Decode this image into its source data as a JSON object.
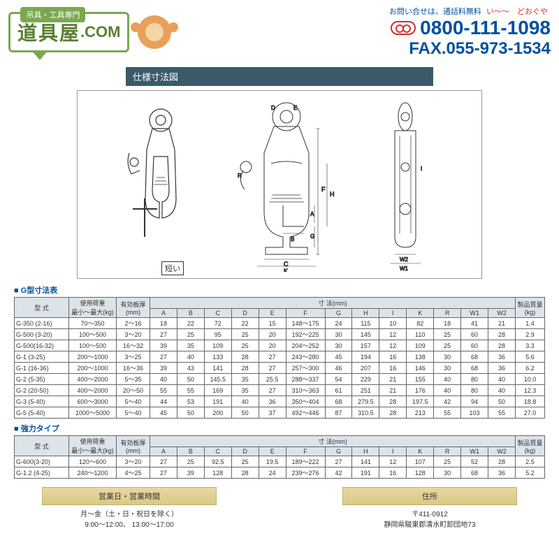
{
  "header": {
    "logo_main": "道具屋",
    "logo_com": ".COM",
    "logo_tag": "吊具・工具専門",
    "contact_label": "お問い合せは、通話料無料",
    "kana_i": "い〜〜",
    "kana_do": "どおぐや",
    "phone": "0800-111-1098",
    "fax": "FAX.055-973-1534"
  },
  "section_title": "仕様寸法図",
  "diagram_note": "短い",
  "table1": {
    "heading": "■ G型寸法表",
    "cols_top": [
      "型 式",
      "使用荷重\n最小〜最大(kg)",
      "有効板厚\n(mm)",
      "寸 法(mm)",
      "製品質量\n(kg)"
    ],
    "dim_cols": [
      "A",
      "B",
      "C",
      "D",
      "E",
      "F",
      "G",
      "H",
      "I",
      "K",
      "R",
      "W1",
      "W2"
    ],
    "rows": [
      [
        "G-350  (2-16)",
        "70〜350",
        "2〜16",
        "18",
        "22",
        "72",
        "22",
        "15",
        "148〜175",
        "24",
        "115",
        "10",
        "82",
        "18",
        "41",
        "21",
        "1.4"
      ],
      [
        "G-500  (3-20)",
        "100〜500",
        "3〜20",
        "27",
        "25",
        "95",
        "25",
        "20",
        "192〜225",
        "30",
        "145",
        "12",
        "110",
        "25",
        "60",
        "28",
        "2.9"
      ],
      [
        "G-500(16-32)",
        "100〜500",
        "16〜32",
        "39",
        "35",
        "109",
        "25",
        "20",
        "204〜252",
        "30",
        "157",
        "12",
        "109",
        "25",
        "60",
        "28",
        "3.3"
      ],
      [
        "G-1    (3-25)",
        "200〜1000",
        "3〜25",
        "27",
        "40",
        "133",
        "28",
        "27",
        "243〜280",
        "45",
        "194",
        "16",
        "138",
        "30",
        "68",
        "36",
        "5.6"
      ],
      [
        "G-1   (16-36)",
        "200〜1000",
        "16〜36",
        "39",
        "43",
        "141",
        "28",
        "27",
        "257〜300",
        "46",
        "207",
        "16",
        "146",
        "30",
        "68",
        "36",
        "6.2"
      ],
      [
        "G-2    (5-35)",
        "400〜2000",
        "5〜35",
        "40",
        "50",
        "145.5",
        "35",
        "25.5",
        "288〜337",
        "54",
        "229",
        "21",
        "155",
        "40",
        "80",
        "40",
        "10.0"
      ],
      [
        "G-2   (20-50)",
        "400〜2000",
        "20〜50",
        "55",
        "55",
        "169",
        "35",
        "27",
        "310〜363",
        "61",
        "251",
        "21",
        "176",
        "40",
        "80",
        "40",
        "12.3"
      ],
      [
        "G-3    (5-40)",
        "600〜3000",
        "5〜40",
        "44",
        "53",
        "191",
        "40",
        "36",
        "350〜404",
        "68",
        "279.5",
        "28",
        "197.5",
        "42",
        "94",
        "50",
        "18.8"
      ],
      [
        "G-5    (5-40)",
        "1000〜5000",
        "5〜40",
        "45",
        "50",
        "200",
        "50",
        "37",
        "492〜446",
        "87",
        "310.5",
        "28",
        "213",
        "55",
        "103",
        "55",
        "27.0"
      ]
    ]
  },
  "table2": {
    "heading": "■ 強力タイプ",
    "rows": [
      [
        "G-600(3-20)",
        "120〜600",
        "3〜20",
        "27",
        "25",
        "92.5",
        "25",
        "19.5",
        "189〜222",
        "27",
        "141",
        "12",
        "107",
        "25",
        "52",
        "28",
        "2.5"
      ],
      [
        "G-1.2 (4-25)",
        "240〜1200",
        "4〜25",
        "27",
        "39",
        "128",
        "28",
        "24",
        "239〜276",
        "42",
        "191",
        "16",
        "128",
        "30",
        "68",
        "36",
        "5.2"
      ]
    ]
  },
  "footer": {
    "hours_label": "営業日・営業時間",
    "address_label": "住所",
    "hours_1": "月〜金（土・日・祝日を除く）",
    "hours_2": "9:00〜12:00、 13:00〜17:00",
    "addr_1": "〒411-0912",
    "addr_2": "静岡県駿東郡清水町卸団地73"
  },
  "colors": {
    "logo_green": "#7aa850",
    "header_blue": "#0050a0",
    "red": "#d03030",
    "sec_bg": "#3a5a6a",
    "th_bg": "#dce4ea"
  }
}
